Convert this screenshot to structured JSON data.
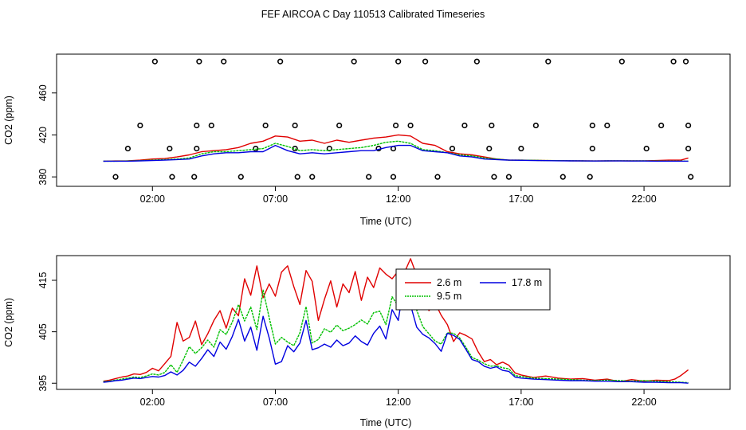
{
  "title": "FEF AIRCOA C  Day 110513  Calibrated Timeseries",
  "colors": {
    "s1": "#e00000",
    "s2": "#00c000",
    "s3": "#0000e0",
    "axis": "#000000"
  },
  "chart_data": [
    {
      "type": "line",
      "xlabel": "Time (UTC)",
      "ylabel": "CO2 (ppm)",
      "xlim": [
        -1.9,
        25.5
      ],
      "ylim": [
        371,
        497
      ],
      "xticks": [
        2,
        7,
        12,
        17,
        22
      ],
      "xticklabels": [
        "02:00",
        "07:00",
        "12:00",
        "17:00",
        "22:00"
      ],
      "yticks": [
        380,
        420,
        460
      ],
      "yticklabels": [
        "380",
        "420",
        "460"
      ],
      "series": [
        {
          "name": "2.6 m",
          "x": [
            0,
            0.5,
            1,
            1.5,
            2,
            2.5,
            3,
            3.5,
            4,
            4.5,
            5,
            5.5,
            6,
            6.5,
            7,
            7.5,
            8,
            8.5,
            9,
            9.5,
            10,
            10.5,
            11,
            11.5,
            12,
            12.5,
            13,
            13.5,
            14,
            14.5,
            15,
            15.5,
            16,
            16.5,
            17,
            17.5,
            18,
            18.5,
            19,
            19.5,
            20,
            20.5,
            21,
            21.5,
            22,
            22.5,
            23,
            23.5,
            23.8
          ],
          "y": [
            395,
            395.2,
            395.4,
            396,
            397,
            397.5,
            399,
            401,
            404,
            405,
            406,
            408,
            412,
            414,
            419,
            418,
            414,
            415,
            412,
            415,
            413,
            415,
            417,
            418,
            420,
            419,
            412,
            410,
            404,
            402,
            401,
            399,
            397,
            396,
            396,
            395.8,
            395.6,
            395.5,
            395.4,
            395.3,
            395.2,
            395.3,
            395.4,
            395.3,
            395.4,
            395.6,
            396,
            396,
            398
          ]
        },
        {
          "name": "9.5 m",
          "x": [
            0,
            0.5,
            1,
            1.5,
            2,
            2.5,
            3,
            3.5,
            4,
            4.5,
            5,
            5.5,
            6,
            6.5,
            7,
            7.5,
            8,
            8.5,
            9,
            9.5,
            10,
            10.5,
            11,
            11.5,
            12,
            12.5,
            13,
            13.5,
            14,
            14.5,
            15,
            15.5,
            16,
            16.5,
            17,
            17.5,
            18,
            18.5,
            19,
            19.5,
            20,
            20.5,
            21,
            21.5,
            22,
            22.5,
            23,
            23.5,
            23.8
          ],
          "y": [
            395,
            395,
            395.2,
            395.5,
            396,
            396.5,
            397,
            398,
            402,
            404,
            404,
            405,
            406,
            407,
            412,
            409,
            405,
            406,
            405,
            406,
            407,
            408,
            410,
            413,
            414,
            412,
            406,
            405,
            403,
            401,
            400,
            398,
            397,
            396,
            396,
            395.8,
            395.6,
            395.5,
            395.4,
            395.3,
            395.2,
            395.3,
            395.4,
            395.3,
            395.3,
            395.2,
            395.1,
            395.1,
            395
          ]
        },
        {
          "name": "17.8 m",
          "x": [
            0,
            0.5,
            1,
            1.5,
            2,
            2.5,
            3,
            3.5,
            4,
            4.5,
            5,
            5.5,
            6,
            6.5,
            7,
            7.5,
            8,
            8.5,
            9,
            9.5,
            10,
            10.5,
            11,
            11.5,
            12,
            12.5,
            13,
            13.5,
            14,
            14.5,
            15,
            15.5,
            16,
            16.5,
            17,
            17.5,
            18,
            18.5,
            19,
            19.5,
            20,
            20.5,
            21,
            21.5,
            22,
            22.5,
            23,
            23.5,
            23.8
          ],
          "y": [
            395,
            395,
            395,
            395.3,
            395.6,
            396,
            396.5,
            397,
            400,
            402,
            403,
            403,
            404,
            404,
            410,
            405,
            402,
            403,
            402,
            403,
            404,
            405,
            405,
            408,
            410,
            410,
            405,
            404,
            403,
            400,
            399,
            397,
            396.5,
            396,
            395.8,
            395.6,
            395.5,
            395.4,
            395.3,
            395.2,
            395.1,
            395.2,
            395.2,
            395.1,
            395.1,
            395,
            395,
            395,
            395
          ]
        }
      ],
      "flags": {
        "x": [
          0.5,
          1,
          2.1,
          1.5,
          2.8,
          2.7,
          3.9,
          3.8,
          3.7,
          3.8,
          4.4,
          4.9,
          5.6,
          6.2,
          6.6,
          7.2,
          7.8,
          7.8,
          7.9,
          8.5,
          9.2,
          9.6,
          10.2,
          10.8,
          11.2,
          11.8,
          11.8,
          11.9,
          12.0,
          12.5,
          13.1,
          13.6,
          14.2,
          14.7,
          15.2,
          15.7,
          15.8,
          15.9,
          16.5,
          17.0,
          17.6,
          18.1,
          18.7,
          19.8,
          19.9,
          19.9,
          20.5,
          21.1,
          22.1,
          22.7,
          23.2,
          23.7,
          23.8,
          23.8,
          23.9
        ],
        "y": [
          380,
          407,
          490,
          429,
          380,
          407,
          490,
          429,
          380,
          407,
          429,
          490,
          380,
          407,
          429,
          490,
          407,
          429,
          380,
          380,
          407,
          429,
          490,
          380,
          407,
          380,
          407,
          429,
          490,
          429,
          490,
          380,
          407,
          429,
          490,
          407,
          429,
          380,
          380,
          407,
          429,
          490,
          380,
          380,
          407,
          429,
          429,
          490,
          407,
          429,
          490,
          490,
          429,
          407,
          380
        ]
      }
    },
    {
      "type": "line",
      "xlabel": "Time (UTC)",
      "ylabel": "CO2 (ppm)",
      "xlim": [
        -1.9,
        25.5
      ],
      "ylim": [
        393.8,
        419.8
      ],
      "xticks": [
        2,
        7,
        12,
        17,
        22
      ],
      "xticklabels": [
        "02:00",
        "07:00",
        "12:00",
        "17:00",
        "22:00"
      ],
      "yticks": [
        395,
        405,
        415
      ],
      "yticklabels": [
        "395",
        "405",
        "415"
      ],
      "legend": {
        "position": "top-center",
        "entries": [
          "2.6 m",
          "17.8 m",
          "9.5 m"
        ]
      },
      "series": [
        {
          "name": "2.6 m",
          "x": [
            0,
            0.25,
            0.5,
            0.75,
            1,
            1.25,
            1.5,
            1.75,
            2,
            2.25,
            2.5,
            2.75,
            3,
            3.25,
            3.5,
            3.75,
            4,
            4.25,
            4.5,
            4.75,
            5,
            5.25,
            5.5,
            5.75,
            6,
            6.25,
            6.5,
            6.75,
            7,
            7.25,
            7.5,
            7.75,
            8,
            8.25,
            8.5,
            8.75,
            9,
            9.25,
            9.5,
            9.75,
            10,
            10.25,
            10.5,
            10.75,
            11,
            11.25,
            11.5,
            11.75,
            12,
            12.25,
            12.5,
            12.75,
            13,
            13.25,
            13.5,
            13.75,
            14,
            14.25,
            14.5,
            14.75,
            15,
            15.25,
            15.5,
            15.75,
            16,
            16.25,
            16.5,
            16.75,
            17,
            17.5,
            18,
            18.5,
            19,
            19.5,
            20,
            20.5,
            21,
            21.5,
            22,
            22.5,
            23,
            23.25,
            23.5,
            23.8
          ],
          "y": [
            395.4,
            395.6,
            395.9,
            396.2,
            396.4,
            396.8,
            396.7,
            397.1,
            397.9,
            397.4,
            398.8,
            400.2,
            406.8,
            403.2,
            403.9,
            407.1,
            402.5,
            404.6,
            407.2,
            409.1,
            405.7,
            409.6,
            408.1,
            415.3,
            412.1,
            417.8,
            411.6,
            414.3,
            411.9,
            416.6,
            417.8,
            413.8,
            410.3,
            416.9,
            414.8,
            407.2,
            411.3,
            414.9,
            409.8,
            414.3,
            412.6,
            416.7,
            411.1,
            415.6,
            413.6,
            417.4,
            416.2,
            415.3,
            416.8,
            416.5,
            419.2,
            416.0,
            412.4,
            409.1,
            410.6,
            408.2,
            406.4,
            403.1,
            404.8,
            404.3,
            403.6,
            401.1,
            399.2,
            399.6,
            398.6,
            399.1,
            398.5,
            397.0,
            396.6,
            396.1,
            396.4,
            396.0,
            395.8,
            395.9,
            395.6,
            395.8,
            395.3,
            395.7,
            395.4,
            395.6,
            395.5,
            395.8,
            396.5,
            397.6
          ]
        },
        {
          "name": "9.5 m",
          "x": [
            0,
            0.25,
            0.5,
            0.75,
            1,
            1.25,
            1.5,
            1.75,
            2,
            2.25,
            2.5,
            2.75,
            3,
            3.25,
            3.5,
            3.75,
            4,
            4.25,
            4.5,
            4.75,
            5,
            5.25,
            5.5,
            5.75,
            6,
            6.25,
            6.5,
            6.75,
            7,
            7.25,
            7.5,
            7.75,
            8,
            8.25,
            8.5,
            8.75,
            9,
            9.25,
            9.5,
            9.75,
            10,
            10.25,
            10.5,
            10.75,
            11,
            11.25,
            11.5,
            11.75,
            12,
            12.25,
            12.5,
            12.75,
            13,
            13.25,
            13.5,
            13.75,
            14,
            14.25,
            14.5,
            14.75,
            15,
            15.25,
            15.5,
            15.75,
            16,
            16.25,
            16.5,
            16.75,
            17,
            17.5,
            18,
            18.5,
            19,
            19.5,
            20,
            20.5,
            21,
            21.5,
            22,
            22.5,
            23,
            23.5,
            23.8
          ],
          "y": [
            395.3,
            395.4,
            395.6,
            395.8,
            396.0,
            396.2,
            396.1,
            396.4,
            396.8,
            396.6,
            397.1,
            398.6,
            397.1,
            399.5,
            402.1,
            400.8,
            401.9,
            403.4,
            402.0,
            405.4,
            404.5,
            406.9,
            410.3,
            407.1,
            409.8,
            405.4,
            413.1,
            407.7,
            402.6,
            403.9,
            403.0,
            402.3,
            404.8,
            409.9,
            402.8,
            403.5,
            405.6,
            404.9,
            406.3,
            405.2,
            405.7,
            406.4,
            407.3,
            406.5,
            408.7,
            409.0,
            406.4,
            411.8,
            410.0,
            416.7,
            413.8,
            409.2,
            406.0,
            404.6,
            403.2,
            402.6,
            404.8,
            404.7,
            403.8,
            402.0,
            400.0,
            399.5,
            398.8,
            398.3,
            398.4,
            398.0,
            397.8,
            396.5,
            396.3,
            396.0,
            395.9,
            395.8,
            395.7,
            395.6,
            395.5,
            395.6,
            395.5,
            395.4,
            395.5,
            395.4,
            395.3,
            395.2,
            395.1
          ]
        },
        {
          "name": "17.8 m",
          "x": [
            0,
            0.25,
            0.5,
            0.75,
            1,
            1.25,
            1.5,
            1.75,
            2,
            2.25,
            2.5,
            2.75,
            3,
            3.25,
            3.5,
            3.75,
            4,
            4.25,
            4.5,
            4.75,
            5,
            5.25,
            5.5,
            5.75,
            6,
            6.25,
            6.5,
            6.75,
            7,
            7.25,
            7.5,
            7.75,
            8,
            8.25,
            8.5,
            8.75,
            9,
            9.25,
            9.5,
            9.75,
            10,
            10.25,
            10.5,
            10.75,
            11,
            11.25,
            11.5,
            11.75,
            12,
            12.25,
            12.5,
            12.75,
            13,
            13.25,
            13.5,
            13.75,
            14,
            14.25,
            14.5,
            14.75,
            15,
            15.25,
            15.5,
            15.75,
            16,
            16.25,
            16.5,
            16.75,
            17,
            17.5,
            18,
            18.5,
            19,
            19.5,
            20,
            20.5,
            21,
            21.5,
            22,
            22.5,
            23,
            23.5,
            23.8
          ],
          "y": [
            395.2,
            395.3,
            395.5,
            395.6,
            395.8,
            396.0,
            395.9,
            396.1,
            396.3,
            396.2,
            396.5,
            397.2,
            396.6,
            397.5,
            399.1,
            398.3,
            399.8,
            401.5,
            400.2,
            403.0,
            401.6,
            404.1,
            407.4,
            403.2,
            405.9,
            401.4,
            408.0,
            403.8,
            398.7,
            399.2,
            402.3,
            401.1,
            402.8,
            407.2,
            401.5,
            401.9,
            402.6,
            402.0,
            403.4,
            402.3,
            402.8,
            404.2,
            403.1,
            402.4,
            404.7,
            406.1,
            403.6,
            409.3,
            407.2,
            414.8,
            410.2,
            405.9,
            404.5,
            403.8,
            402.7,
            401.2,
            404.7,
            404.3,
            403.5,
            401.6,
            399.6,
            399.2,
            398.3,
            397.9,
            398.2,
            397.5,
            397.3,
            396.2,
            396.0,
            395.8,
            395.7,
            395.6,
            395.5,
            395.5,
            395.4,
            395.4,
            395.3,
            395.3,
            395.2,
            395.2,
            395.1,
            395.1,
            395.0
          ]
        }
      ]
    }
  ]
}
